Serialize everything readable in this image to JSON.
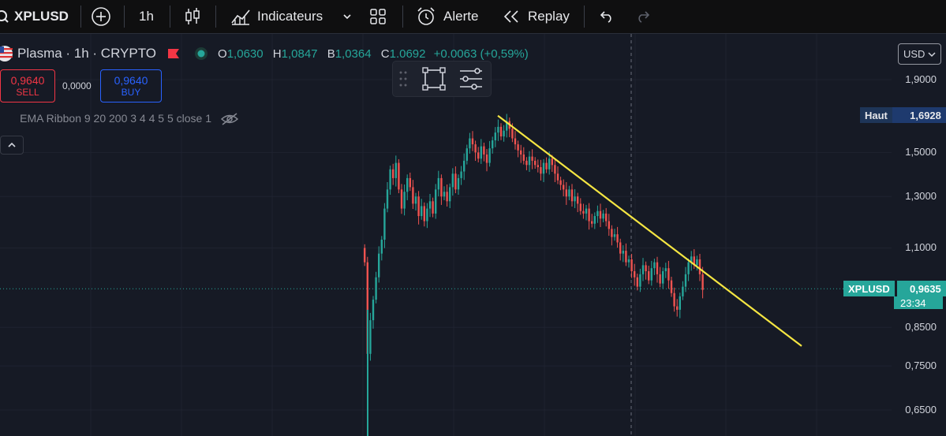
{
  "toolbar": {
    "symbol": "XPLUSD",
    "interval": "1h",
    "indicators_label": "Indicateurs",
    "alert_label": "Alerte",
    "replay_label": "Replay"
  },
  "legend": {
    "name": "Plasma · 1h · CRYPTO",
    "open_key": "O",
    "open": "1,0630",
    "high_key": "H",
    "high": "1,0847",
    "low_key": "B",
    "low": "1,0364",
    "close_key": "C",
    "close": "1.0692",
    "change": "+0.0063 (+0,59%)"
  },
  "trade": {
    "sell_price": "0,9640",
    "sell_label": "SELL",
    "spread": "0,0000",
    "buy_price": "0,9640",
    "buy_label": "BUY"
  },
  "indicator_label": "EMA Ribbon 9 20 200 3 4 4 5 5 close 1",
  "currency": "USD",
  "price_axis": {
    "ticks": [
      "1,9000",
      "1,5000",
      "1,3000",
      "1,1000",
      "0,8500",
      "0,7500",
      "0,6500"
    ],
    "high_tag": {
      "label": "Haut",
      "value": "1,6928"
    },
    "symbol_tag": {
      "label": "XPLUSD",
      "value": "0,9635",
      "countdown": "23:34"
    }
  },
  "colors": {
    "up": "#26a69a",
    "down": "#ef5350",
    "trendline": "#f5e642",
    "background": "#161a25"
  },
  "chart_data": {
    "type": "candlestick",
    "title": "Plasma · 1h · CRYPTO",
    "yscale": "log",
    "ylim": [
      0.63,
      2.0
    ],
    "trendline": {
      "from": 1.69,
      "to": 0.8
    },
    "current_price": 0.9635,
    "session_high": 1.6928,
    "closes": [
      1.05,
      0.78,
      0.87,
      0.93,
      1.0,
      1.08,
      1.13,
      1.25,
      1.33,
      1.42,
      1.38,
      1.45,
      1.33,
      1.25,
      1.32,
      1.38,
      1.34,
      1.27,
      1.3,
      1.22,
      1.26,
      1.2,
      1.25,
      1.28,
      1.23,
      1.33,
      1.38,
      1.3,
      1.32,
      1.28,
      1.34,
      1.4,
      1.33,
      1.38,
      1.41,
      1.46,
      1.52,
      1.57,
      1.54,
      1.5,
      1.47,
      1.53,
      1.49,
      1.45,
      1.52,
      1.56,
      1.6,
      1.63,
      1.58,
      1.61,
      1.66,
      1.62,
      1.57,
      1.54,
      1.51,
      1.49,
      1.46,
      1.44,
      1.48,
      1.46,
      1.44,
      1.43,
      1.4,
      1.45,
      1.42,
      1.47,
      1.44,
      1.4,
      1.37,
      1.35,
      1.33,
      1.3,
      1.33,
      1.28,
      1.3,
      1.27,
      1.24,
      1.23,
      1.25,
      1.2,
      1.19,
      1.22,
      1.24,
      1.21,
      1.23,
      1.2,
      1.17,
      1.14,
      1.15,
      1.12,
      1.08,
      1.09,
      1.05,
      1.06,
      1.02,
      1.0,
      0.97,
      1.01,
      1.04,
      1.02,
      0.99,
      1.03,
      1.05,
      1.01,
      0.98,
      1.02,
      1.03,
      0.99,
      0.95,
      0.91,
      0.9,
      0.94,
      0.97,
      1.01,
      1.05,
      1.07,
      1.04,
      1.06,
      1.01,
      0.96
    ]
  }
}
